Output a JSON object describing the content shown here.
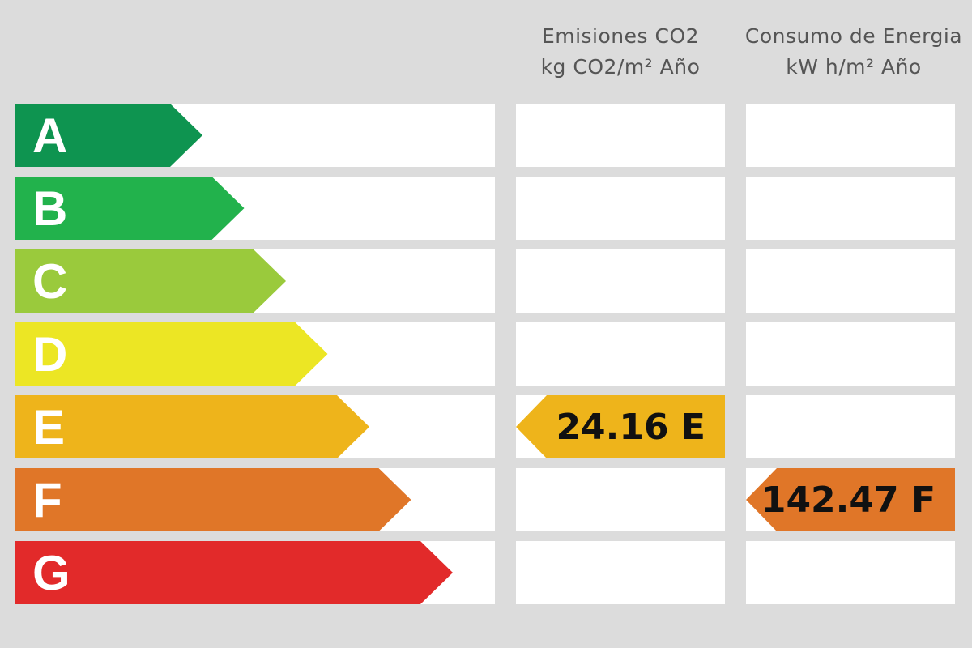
{
  "headers": {
    "co2": {
      "line1": "Emisiones CO2",
      "line2": "kg CO2/m² Año"
    },
    "energy": {
      "line1": "Consumo de Energia",
      "line2": "kW h/m² Año"
    }
  },
  "classes": [
    {
      "letter": "A",
      "color": "#0e9450"
    },
    {
      "letter": "B",
      "color": "#22b24c"
    },
    {
      "letter": "C",
      "color": "#9aca3c"
    },
    {
      "letter": "D",
      "color": "#ece624"
    },
    {
      "letter": "E",
      "color": "#eeb41b"
    },
    {
      "letter": "F",
      "color": "#e07628"
    },
    {
      "letter": "G",
      "color": "#e22a2a"
    }
  ],
  "ratings": {
    "co2": {
      "value": "24.16 E",
      "class": "E"
    },
    "energy": {
      "value": "142.47 F",
      "class": "F"
    }
  }
}
